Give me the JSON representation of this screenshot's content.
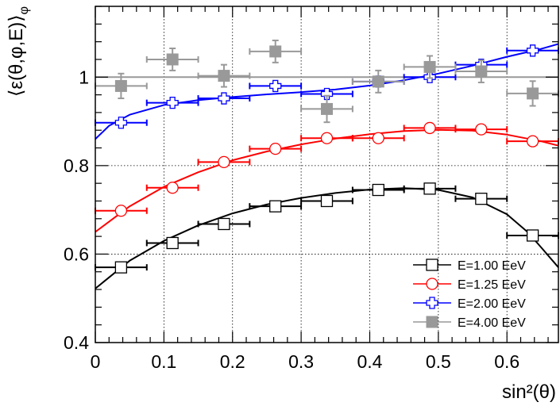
{
  "chart_data": {
    "type": "scatter",
    "xlabel": "sin²(θ)",
    "ylabel": "⟨ε(θ,φ,E)⟩",
    "ylabel_subscript": "φ",
    "xlim": [
      0,
      0.675
    ],
    "ylim": [
      0.4,
      1.16
    ],
    "x_ticks": [
      0,
      0.1,
      0.2,
      0.3,
      0.4,
      0.5,
      0.6
    ],
    "x_tick_labels": [
      "0",
      "0.1",
      "0.2",
      "0.3",
      "0.4",
      "0.5",
      "0.6"
    ],
    "y_ticks": [
      0.4,
      0.6,
      0.8,
      1.0
    ],
    "y_tick_labels": [
      "0.4",
      "0.6",
      "0.8",
      "1"
    ],
    "grid": true,
    "legend_position": "bottom-right",
    "reference_line": {
      "y": 1.0,
      "color": "#999999"
    },
    "series": [
      {
        "name": "E=1.00 EeV",
        "color": "#000000",
        "marker": "open-square",
        "points": [
          {
            "x": 0.0375,
            "y": 0.57,
            "xerr": 0.0375
          },
          {
            "x": 0.1125,
            "y": 0.625,
            "xerr": 0.0375
          },
          {
            "x": 0.1875,
            "y": 0.668,
            "xerr": 0.0375
          },
          {
            "x": 0.2625,
            "y": 0.708,
            "xerr": 0.0375
          },
          {
            "x": 0.3375,
            "y": 0.72,
            "xerr": 0.0375
          },
          {
            "x": 0.4125,
            "y": 0.745,
            "xerr": 0.0375
          },
          {
            "x": 0.4875,
            "y": 0.748,
            "xerr": 0.0375
          },
          {
            "x": 0.5625,
            "y": 0.725,
            "xerr": 0.0375
          },
          {
            "x": 0.6375,
            "y": 0.642,
            "xerr": 0.0375
          }
        ],
        "fit": [
          [
            0,
            0.522
          ],
          [
            0.05,
            0.585
          ],
          [
            0.1,
            0.63
          ],
          [
            0.15,
            0.665
          ],
          [
            0.2,
            0.692
          ],
          [
            0.25,
            0.712
          ],
          [
            0.3,
            0.727
          ],
          [
            0.35,
            0.738
          ],
          [
            0.4,
            0.746
          ],
          [
            0.45,
            0.749
          ],
          [
            0.5,
            0.745
          ],
          [
            0.55,
            0.728
          ],
          [
            0.6,
            0.69
          ],
          [
            0.63,
            0.65
          ],
          [
            0.65,
            0.615
          ],
          [
            0.675,
            0.57
          ]
        ]
      },
      {
        "name": "E=1.25 EeV",
        "color": "#ff0000",
        "marker": "open-circle",
        "points": [
          {
            "x": 0.0375,
            "y": 0.698,
            "xerr": 0.0375
          },
          {
            "x": 0.1125,
            "y": 0.75,
            "xerr": 0.0375
          },
          {
            "x": 0.1875,
            "y": 0.808,
            "xerr": 0.0375
          },
          {
            "x": 0.2625,
            "y": 0.838,
            "xerr": 0.0375
          },
          {
            "x": 0.3375,
            "y": 0.862,
            "xerr": 0.0375
          },
          {
            "x": 0.4125,
            "y": 0.862,
            "xerr": 0.0375
          },
          {
            "x": 0.4875,
            "y": 0.885,
            "xerr": 0.0375
          },
          {
            "x": 0.5625,
            "y": 0.882,
            "xerr": 0.0375
          },
          {
            "x": 0.6375,
            "y": 0.855,
            "xerr": 0.0375
          }
        ],
        "fit": [
          [
            0,
            0.65
          ],
          [
            0.05,
            0.708
          ],
          [
            0.1,
            0.752
          ],
          [
            0.15,
            0.785
          ],
          [
            0.2,
            0.812
          ],
          [
            0.25,
            0.832
          ],
          [
            0.3,
            0.848
          ],
          [
            0.35,
            0.861
          ],
          [
            0.4,
            0.871
          ],
          [
            0.45,
            0.878
          ],
          [
            0.5,
            0.881
          ],
          [
            0.55,
            0.879
          ],
          [
            0.6,
            0.87
          ],
          [
            0.65,
            0.855
          ],
          [
            0.675,
            0.845
          ]
        ]
      },
      {
        "name": "E=2.00 EeV",
        "color": "#0000ff",
        "marker": "open-cross",
        "points": [
          {
            "x": 0.0375,
            "y": 0.897,
            "xerr": 0.0375
          },
          {
            "x": 0.1125,
            "y": 0.942,
            "xerr": 0.0375
          },
          {
            "x": 0.1875,
            "y": 0.952,
            "xerr": 0.0375
          },
          {
            "x": 0.2625,
            "y": 0.98,
            "xerr": 0.0375
          },
          {
            "x": 0.3375,
            "y": 0.962,
            "xerr": 0.0375
          },
          {
            "x": 0.4125,
            "y": 0.99,
            "xerr": 0.0375
          },
          {
            "x": 0.4875,
            "y": 1.0,
            "xerr": 0.0375
          },
          {
            "x": 0.5625,
            "y": 1.028,
            "xerr": 0.0375
          },
          {
            "x": 0.6375,
            "y": 1.06,
            "xerr": 0.0375
          }
        ],
        "fit": [
          [
            0,
            0.86
          ],
          [
            0.02,
            0.89
          ],
          [
            0.05,
            0.915
          ],
          [
            0.1,
            0.937
          ],
          [
            0.15,
            0.948
          ],
          [
            0.2,
            0.955
          ],
          [
            0.25,
            0.961
          ],
          [
            0.3,
            0.966
          ],
          [
            0.35,
            0.972
          ],
          [
            0.4,
            0.981
          ],
          [
            0.45,
            0.993
          ],
          [
            0.5,
            1.008
          ],
          [
            0.55,
            1.026
          ],
          [
            0.6,
            1.046
          ],
          [
            0.65,
            1.064
          ],
          [
            0.675,
            1.075
          ]
        ]
      },
      {
        "name": "E=4.00 EeV",
        "color": "#999999",
        "marker": "filled-square",
        "points": [
          {
            "x": 0.0375,
            "y": 0.98,
            "xerr": 0.0375,
            "yerr": 0.028
          },
          {
            "x": 0.1125,
            "y": 1.04,
            "xerr": 0.0375,
            "yerr": 0.025
          },
          {
            "x": 0.1875,
            "y": 1.003,
            "xerr": 0.0375,
            "yerr": 0.025
          },
          {
            "x": 0.2625,
            "y": 1.058,
            "xerr": 0.0375,
            "yerr": 0.025
          },
          {
            "x": 0.3375,
            "y": 0.928,
            "xerr": 0.0375,
            "yerr": 0.03
          },
          {
            "x": 0.4125,
            "y": 0.99,
            "xerr": 0.0375,
            "yerr": 0.025
          },
          {
            "x": 0.4875,
            "y": 1.023,
            "xerr": 0.0375,
            "yerr": 0.025
          },
          {
            "x": 0.5625,
            "y": 1.013,
            "xerr": 0.0375,
            "yerr": 0.025
          },
          {
            "x": 0.6375,
            "y": 0.963,
            "xerr": 0.0375,
            "yerr": 0.028
          }
        ],
        "fit": []
      }
    ]
  }
}
